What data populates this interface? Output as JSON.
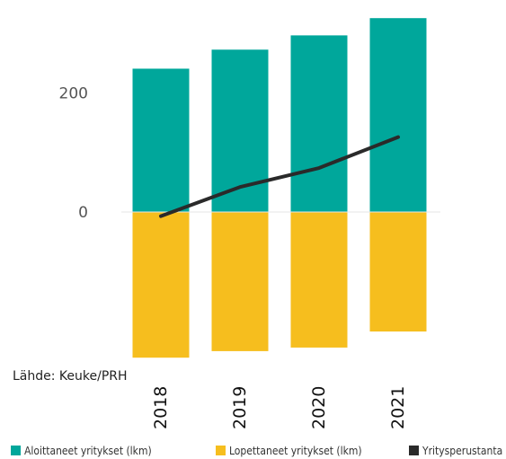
{
  "source_note": "Lähde: Keuke/PRH",
  "chart_data": {
    "type": "bar",
    "categories": [
      "2018",
      "2019",
      "2020",
      "2021"
    ],
    "series": [
      {
        "name": "Aloittaneet yritykset (lkm)",
        "type": "bar",
        "color": "#00A79B",
        "values": [
          241,
          273,
          297,
          326
        ]
      },
      {
        "name": "Lopettaneet yritykset (lkm)",
        "type": "bar",
        "color": "#F6BE1E",
        "values": [
          -245,
          -234,
          -228,
          -201
        ]
      },
      {
        "name": "Yritysperustanta",
        "type": "line",
        "color": "#2A2A2A",
        "values": [
          -7,
          42,
          74,
          126
        ]
      }
    ],
    "y_ticks": [
      0,
      200
    ],
    "ylim": [
      -250,
      330
    ],
    "grid": false,
    "legend_position": "bottom"
  }
}
